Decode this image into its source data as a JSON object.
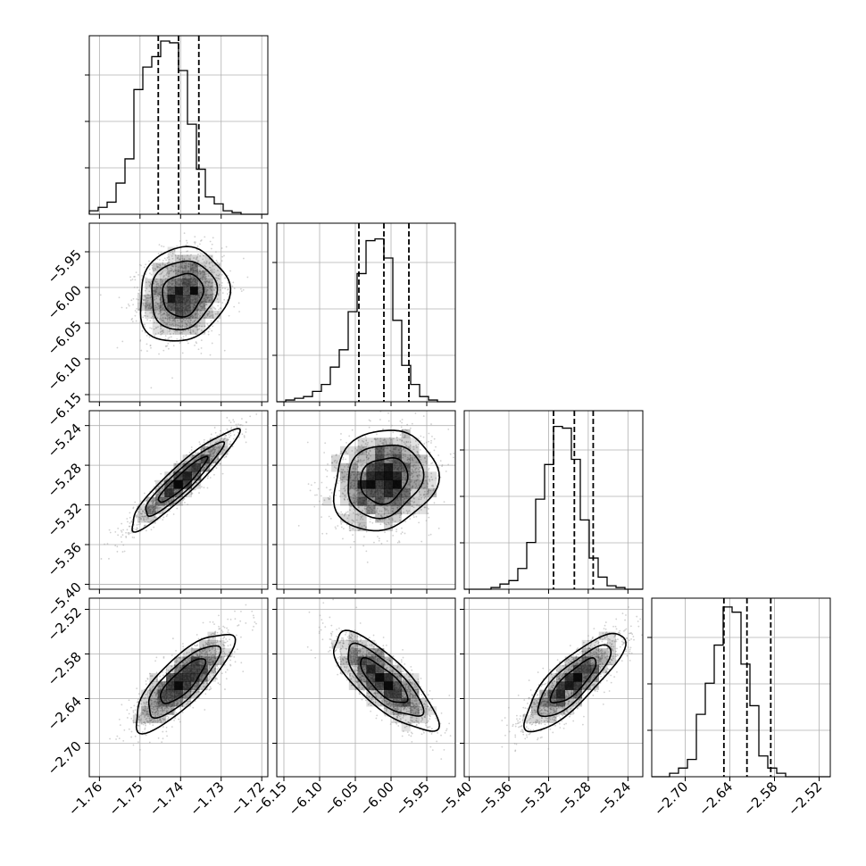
{
  "chart_data": {
    "type": "corner",
    "grid": true,
    "histogram_style": "step",
    "colors": {
      "ink": "#000000",
      "grid": "#b0b0b0",
      "scatter": "#9a9a9a",
      "density": "#000000"
    },
    "params": [
      {
        "ticks": [
          -1.76,
          -1.75,
          -1.74,
          -1.73,
          -1.72
        ],
        "tick_labels": [
          "−1.76",
          "−1.75",
          "−1.74",
          "−1.73",
          "−1.72"
        ],
        "range": [
          -1.7625,
          -1.7185
        ]
      },
      {
        "ticks": [
          -6.15,
          -6.1,
          -6.05,
          -6.0,
          -5.95
        ],
        "tick_labels": [
          "−6.15",
          "−6.10",
          "−6.05",
          "−6.00",
          "−5.95"
        ],
        "range": [
          -6.16,
          -5.91
        ]
      },
      {
        "ticks": [
          -5.4,
          -5.36,
          -5.32,
          -5.28,
          -5.24
        ],
        "tick_labels": [
          "−5.40",
          "−5.36",
          "−5.32",
          "−5.28",
          "−5.24"
        ],
        "range": [
          -5.405,
          -5.225
        ]
      },
      {
        "ticks": [
          -2.7,
          -2.64,
          -2.58,
          -2.52
        ],
        "tick_labels": [
          "−2.70",
          "−2.64",
          "−2.58",
          "−2.52"
        ],
        "range": [
          -2.745,
          -2.505
        ]
      }
    ],
    "histograms": [
      {
        "bins": 20,
        "quantiles": [
          -1.7455,
          -1.7405,
          -1.7355
        ],
        "heights": [
          0.02,
          0.04,
          0.07,
          0.18,
          0.32,
          0.72,
          0.85,
          0.91,
          1.0,
          0.99,
          0.83,
          0.52,
          0.26,
          0.1,
          0.06,
          0.02,
          0.01,
          0.0,
          0.0,
          0.0
        ]
      },
      {
        "bins": 20,
        "quantiles": [
          -6.045,
          -6.01,
          -5.975
        ],
        "heights": [
          0.0,
          0.01,
          0.02,
          0.03,
          0.06,
          0.1,
          0.2,
          0.3,
          0.52,
          0.74,
          0.93,
          0.94,
          0.83,
          0.47,
          0.21,
          0.1,
          0.03,
          0.01,
          0.0,
          0.0
        ]
      },
      {
        "bins": 20,
        "quantiles": [
          -5.315,
          -5.294,
          -5.275
        ],
        "heights": [
          0.0,
          0.0,
          0.0,
          0.01,
          0.03,
          0.05,
          0.12,
          0.27,
          0.52,
          0.72,
          0.94,
          0.93,
          0.75,
          0.4,
          0.18,
          0.07,
          0.02,
          0.01,
          0.0,
          0.0
        ]
      },
      {
        "bins": 20,
        "quantiles": [
          -2.648,
          -2.617,
          -2.585
        ],
        "heights": [
          0.0,
          0.0,
          0.02,
          0.05,
          0.1,
          0.36,
          0.54,
          0.76,
          0.98,
          0.95,
          0.65,
          0.41,
          0.12,
          0.05,
          0.02,
          0.0,
          0.0,
          0.0,
          0.0,
          0.0
        ]
      }
    ],
    "pairs": [
      {
        "x_param": 0,
        "y_param": 1,
        "center": [
          -1.7395,
          -6.01
        ],
        "sigma": [
          0.005,
          0.03
        ],
        "corr": 0.12,
        "samples": 1800
      },
      {
        "x_param": 0,
        "y_param": 2,
        "center": [
          -1.7395,
          -5.295
        ],
        "sigma": [
          0.006,
          0.023
        ],
        "corr": 0.93,
        "samples": 1800
      },
      {
        "x_param": 1,
        "y_param": 2,
        "center": [
          -6.01,
          -5.295
        ],
        "sigma": [
          0.033,
          0.023
        ],
        "corr": 0.15,
        "samples": 1800
      },
      {
        "x_param": 0,
        "y_param": 3,
        "center": [
          -1.7395,
          -2.617
        ],
        "sigma": [
          0.0055,
          0.03
        ],
        "corr": 0.8,
        "samples": 1800
      },
      {
        "x_param": 1,
        "y_param": 3,
        "center": [
          -6.01,
          -2.617
        ],
        "sigma": [
          0.033,
          0.03
        ],
        "corr": -0.78,
        "samples": 1800
      },
      {
        "x_param": 2,
        "y_param": 3,
        "center": [
          -5.295,
          -2.617
        ],
        "sigma": [
          0.023,
          0.03
        ],
        "corr": 0.82,
        "samples": 1800
      }
    ],
    "contour_levels_sigma": [
      1.0,
      1.6,
      2.2
    ]
  }
}
